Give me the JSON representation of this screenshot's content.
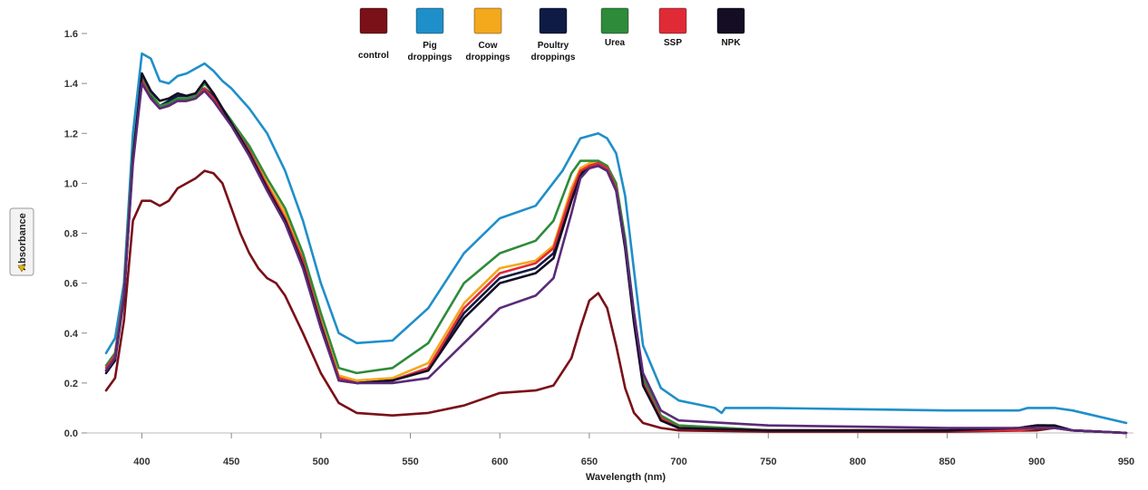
{
  "chart_data": {
    "type": "line",
    "xlabel": "Wavelength (nm)",
    "ylabel": "Absorbance",
    "xlim": [
      380,
      950
    ],
    "ylim": [
      0,
      1.6
    ],
    "xticks": [
      400,
      450,
      500,
      550,
      600,
      650,
      700,
      750,
      800,
      850,
      900,
      950
    ],
    "yticks": [
      0.0,
      0.2,
      0.4,
      0.6,
      0.8,
      1.0,
      1.2,
      1.4,
      1.6
    ],
    "ytick_labels": [
      "0.0",
      "0.2",
      "0.4",
      "0.6",
      "0.8",
      "1.0",
      "1.2",
      "1.4",
      "1.6"
    ],
    "grid": false,
    "legend_position": "top-center",
    "series": [
      {
        "name": "control",
        "label_lines": [
          "control"
        ],
        "color": "#7a1018",
        "x": [
          380,
          385,
          390,
          395,
          400,
          405,
          410,
          415,
          420,
          425,
          430,
          435,
          440,
          445,
          450,
          455,
          460,
          465,
          470,
          475,
          480,
          490,
          500,
          510,
          520,
          540,
          560,
          580,
          600,
          620,
          630,
          640,
          645,
          650,
          655,
          660,
          665,
          670,
          675,
          680,
          690,
          700,
          750,
          800,
          850,
          900,
          910,
          920,
          950
        ],
        "y": [
          0.17,
          0.22,
          0.45,
          0.85,
          0.93,
          0.93,
          0.91,
          0.93,
          0.98,
          1.0,
          1.02,
          1.05,
          1.04,
          1.0,
          0.9,
          0.8,
          0.72,
          0.66,
          0.62,
          0.6,
          0.55,
          0.4,
          0.24,
          0.12,
          0.08,
          0.07,
          0.08,
          0.11,
          0.16,
          0.17,
          0.19,
          0.3,
          0.42,
          0.53,
          0.56,
          0.5,
          0.35,
          0.18,
          0.08,
          0.04,
          0.02,
          0.01,
          0.005,
          0.005,
          0.005,
          0.01,
          0.02,
          0.01,
          0.0
        ]
      },
      {
        "name": "Pig droppings",
        "label_lines": [
          "Pig",
          "droppings"
        ],
        "color": "#1f8fc9",
        "x": [
          380,
          385,
          390,
          395,
          400,
          405,
          410,
          415,
          420,
          425,
          430,
          435,
          440,
          445,
          450,
          460,
          470,
          480,
          490,
          500,
          510,
          520,
          540,
          560,
          580,
          600,
          620,
          635,
          645,
          650,
          655,
          660,
          665,
          670,
          675,
          680,
          690,
          700,
          720,
          724,
          726,
          730,
          750,
          800,
          850,
          890,
          895,
          900,
          905,
          910,
          920,
          950
        ],
        "y": [
          0.32,
          0.38,
          0.6,
          1.2,
          1.52,
          1.5,
          1.41,
          1.4,
          1.43,
          1.44,
          1.46,
          1.48,
          1.45,
          1.41,
          1.38,
          1.3,
          1.2,
          1.05,
          0.85,
          0.6,
          0.4,
          0.36,
          0.37,
          0.5,
          0.72,
          0.86,
          0.91,
          1.05,
          1.18,
          1.19,
          1.2,
          1.18,
          1.12,
          0.95,
          0.65,
          0.35,
          0.18,
          0.13,
          0.1,
          0.08,
          0.1,
          0.1,
          0.1,
          0.095,
          0.09,
          0.09,
          0.1,
          0.1,
          0.1,
          0.1,
          0.09,
          0.04
        ]
      },
      {
        "name": "Cow droppings",
        "label_lines": [
          "Cow",
          "droppings"
        ],
        "color": "#f4a81c",
        "x": [
          380,
          385,
          390,
          395,
          400,
          405,
          410,
          415,
          420,
          425,
          430,
          435,
          440,
          445,
          450,
          460,
          470,
          480,
          490,
          500,
          510,
          520,
          540,
          560,
          580,
          600,
          620,
          630,
          640,
          645,
          650,
          655,
          660,
          665,
          670,
          675,
          680,
          690,
          700,
          750,
          800,
          850,
          890,
          900,
          905,
          910,
          920,
          950
        ],
        "y": [
          0.25,
          0.3,
          0.55,
          1.1,
          1.42,
          1.35,
          1.31,
          1.32,
          1.33,
          1.33,
          1.34,
          1.38,
          1.35,
          1.3,
          1.25,
          1.14,
          1.0,
          0.88,
          0.7,
          0.45,
          0.23,
          0.21,
          0.22,
          0.28,
          0.52,
          0.66,
          0.69,
          0.75,
          0.98,
          1.06,
          1.08,
          1.09,
          1.07,
          0.98,
          0.75,
          0.45,
          0.2,
          0.06,
          0.03,
          0.01,
          0.01,
          0.01,
          0.01,
          0.02,
          0.02,
          0.02,
          0.01,
          0.0
        ]
      },
      {
        "name": "Poultry droppings",
        "label_lines": [
          "Poultry",
          "droppings"
        ],
        "color": "#0d1b45",
        "x": [
          380,
          385,
          390,
          395,
          400,
          405,
          410,
          415,
          420,
          425,
          430,
          435,
          440,
          445,
          450,
          460,
          470,
          480,
          490,
          500,
          510,
          520,
          540,
          560,
          580,
          600,
          620,
          630,
          640,
          645,
          650,
          655,
          660,
          665,
          670,
          675,
          680,
          690,
          700,
          750,
          800,
          850,
          890,
          900,
          905,
          910,
          920,
          950
        ],
        "y": [
          0.25,
          0.3,
          0.55,
          1.1,
          1.42,
          1.35,
          1.31,
          1.33,
          1.35,
          1.35,
          1.36,
          1.38,
          1.35,
          1.3,
          1.25,
          1.13,
          0.98,
          0.85,
          0.68,
          0.44,
          0.22,
          0.2,
          0.21,
          0.26,
          0.48,
          0.62,
          0.66,
          0.72,
          0.95,
          1.04,
          1.07,
          1.08,
          1.06,
          0.98,
          0.75,
          0.45,
          0.2,
          0.05,
          0.02,
          0.01,
          0.01,
          0.01,
          0.02,
          0.03,
          0.03,
          0.02,
          0.01,
          0.0
        ]
      },
      {
        "name": "Urea",
        "label_lines": [
          "Urea"
        ],
        "color": "#2e8b3a",
        "x": [
          380,
          385,
          390,
          395,
          400,
          405,
          410,
          415,
          420,
          425,
          430,
          435,
          440,
          445,
          450,
          460,
          470,
          480,
          490,
          500,
          510,
          520,
          540,
          560,
          580,
          600,
          620,
          630,
          640,
          645,
          650,
          655,
          660,
          665,
          670,
          675,
          680,
          690,
          700,
          750,
          800,
          850,
          890,
          900,
          905,
          910,
          920,
          950
        ],
        "y": [
          0.27,
          0.32,
          0.57,
          1.12,
          1.43,
          1.36,
          1.31,
          1.32,
          1.34,
          1.34,
          1.35,
          1.4,
          1.36,
          1.3,
          1.25,
          1.15,
          1.02,
          0.9,
          0.72,
          0.48,
          0.26,
          0.24,
          0.26,
          0.36,
          0.6,
          0.72,
          0.77,
          0.85,
          1.04,
          1.09,
          1.09,
          1.09,
          1.07,
          1.0,
          0.78,
          0.48,
          0.22,
          0.07,
          0.03,
          0.01,
          0.01,
          0.01,
          0.01,
          0.02,
          0.02,
          0.02,
          0.01,
          0.0
        ]
      },
      {
        "name": "SSP",
        "label_lines": [
          "SSP"
        ],
        "color": "#e02b36",
        "x": [
          380,
          385,
          390,
          395,
          400,
          405,
          410,
          415,
          420,
          425,
          430,
          435,
          440,
          445,
          450,
          460,
          470,
          480,
          490,
          500,
          510,
          520,
          540,
          560,
          580,
          600,
          620,
          630,
          640,
          645,
          650,
          655,
          660,
          665,
          670,
          675,
          680,
          690,
          700,
          750,
          800,
          850,
          890,
          900,
          905,
          910,
          920,
          950
        ],
        "y": [
          0.26,
          0.31,
          0.56,
          1.1,
          1.41,
          1.34,
          1.3,
          1.31,
          1.33,
          1.33,
          1.34,
          1.38,
          1.34,
          1.29,
          1.24,
          1.13,
          0.99,
          0.86,
          0.69,
          0.44,
          0.22,
          0.2,
          0.21,
          0.26,
          0.5,
          0.64,
          0.68,
          0.74,
          0.96,
          1.05,
          1.07,
          1.08,
          1.06,
          0.98,
          0.75,
          0.45,
          0.2,
          0.06,
          0.02,
          0.01,
          0.01,
          0.01,
          0.01,
          0.02,
          0.02,
          0.02,
          0.01,
          0.0
        ]
      },
      {
        "name": "NPK",
        "label_lines": [
          "NPK"
        ],
        "color": "#140d24",
        "x": [
          380,
          385,
          390,
          395,
          400,
          405,
          410,
          415,
          420,
          425,
          430,
          435,
          440,
          445,
          450,
          460,
          470,
          480,
          490,
          500,
          510,
          520,
          540,
          560,
          580,
          600,
          620,
          630,
          640,
          645,
          650,
          655,
          660,
          665,
          670,
          675,
          680,
          690,
          700,
          750,
          800,
          850,
          890,
          900,
          905,
          910,
          920,
          950
        ],
        "y": [
          0.24,
          0.29,
          0.54,
          1.1,
          1.44,
          1.37,
          1.33,
          1.34,
          1.36,
          1.35,
          1.36,
          1.41,
          1.36,
          1.3,
          1.24,
          1.12,
          0.98,
          0.85,
          0.67,
          0.43,
          0.21,
          0.2,
          0.21,
          0.25,
          0.46,
          0.6,
          0.64,
          0.7,
          0.93,
          1.03,
          1.06,
          1.07,
          1.05,
          0.97,
          0.74,
          0.44,
          0.19,
          0.05,
          0.02,
          0.01,
          0.01,
          0.01,
          0.02,
          0.03,
          0.03,
          0.03,
          0.01,
          0.0
        ]
      },
      {
        "name": "",
        "label_lines": [],
        "color": "#5a2a78",
        "x": [
          380,
          385,
          390,
          395,
          400,
          405,
          410,
          415,
          420,
          425,
          430,
          435,
          440,
          445,
          450,
          460,
          470,
          480,
          490,
          500,
          510,
          520,
          540,
          560,
          580,
          600,
          620,
          630,
          640,
          645,
          650,
          655,
          660,
          665,
          670,
          675,
          680,
          690,
          700,
          750,
          800,
          850,
          890,
          900,
          905,
          910,
          920,
          950
        ],
        "y": [
          0.25,
          0.3,
          0.55,
          1.08,
          1.4,
          1.34,
          1.3,
          1.31,
          1.33,
          1.33,
          1.34,
          1.37,
          1.33,
          1.28,
          1.23,
          1.11,
          0.97,
          0.84,
          0.66,
          0.42,
          0.21,
          0.2,
          0.2,
          0.22,
          0.36,
          0.5,
          0.55,
          0.62,
          0.88,
          1.02,
          1.06,
          1.07,
          1.05,
          0.97,
          0.76,
          0.48,
          0.24,
          0.09,
          0.05,
          0.03,
          0.025,
          0.02,
          0.02,
          0.02,
          0.02,
          0.02,
          0.01,
          0.0
        ]
      }
    ]
  }
}
